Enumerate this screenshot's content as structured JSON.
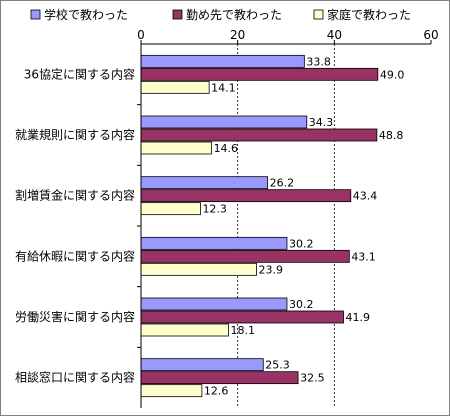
{
  "chart_data": {
    "type": "bar",
    "orientation": "horizontal",
    "categories": [
      "36協定に関する内容",
      "就業規則に関する内容",
      "割増賃金に関する内容",
      "有給休暇に関する内容",
      "労働災害に関する内容",
      "相談窓口に関する内容"
    ],
    "series": [
      {
        "name": "学校で教わった",
        "color": "#9999ff",
        "values": [
          33.8,
          34.3,
          26.2,
          30.2,
          30.2,
          25.3
        ]
      },
      {
        "name": "勤め先で教わった",
        "color": "#993366",
        "values": [
          49.0,
          48.8,
          43.4,
          43.1,
          41.9,
          32.5
        ]
      },
      {
        "name": "家庭で教わった",
        "color": "#ffffcc",
        "values": [
          14.1,
          14.6,
          12.3,
          23.9,
          18.1,
          12.6
        ]
      }
    ],
    "xlim": [
      0,
      60
    ],
    "ticks": [
      0,
      20,
      40,
      60
    ],
    "grid": true,
    "legend_position": "top",
    "title": "",
    "xlabel": "",
    "ylabel": ""
  }
}
